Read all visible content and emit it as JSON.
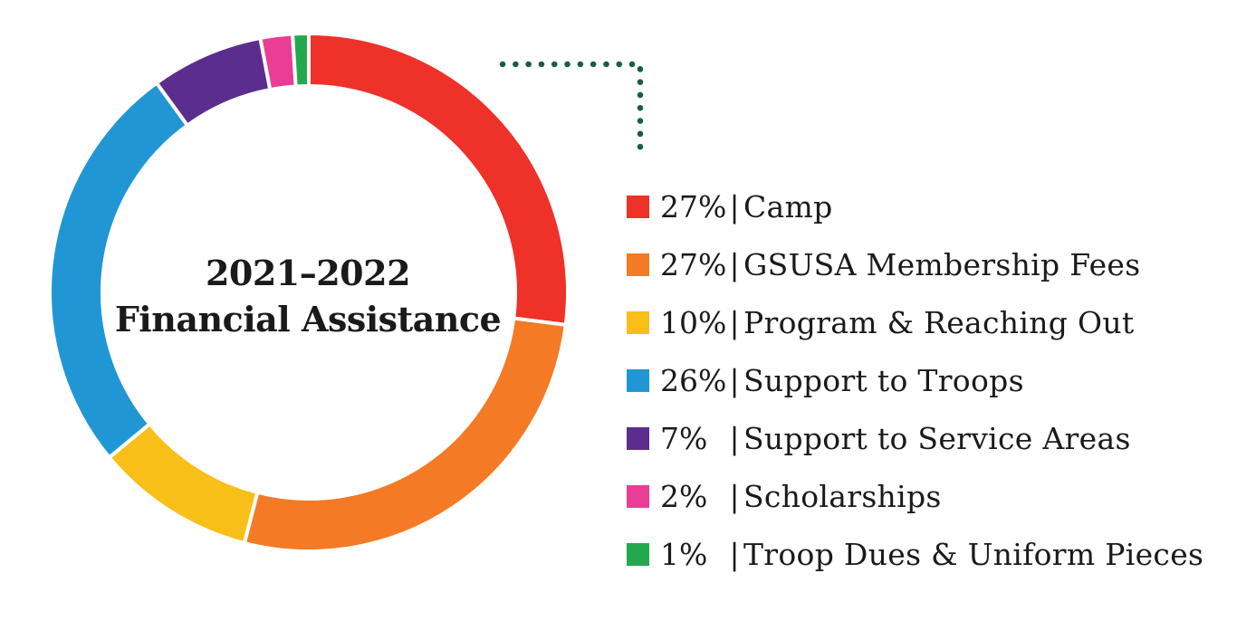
{
  "chart_data": {
    "type": "pie",
    "title": "2021–2022",
    "subtitle": "Financial Assistance",
    "separator": "|",
    "series": [
      {
        "name": "Camp",
        "pct_label": "27%",
        "value": 27,
        "color": "#ee3129"
      },
      {
        "name": "GSUSA Membership Fees",
        "pct_label": "27%",
        "value": 27,
        "color": "#f47a25"
      },
      {
        "name": "Program & Reaching Out",
        "pct_label": "10%",
        "value": 10,
        "color": "#f8bf19"
      },
      {
        "name": "Support to Troops",
        "pct_label": "26%",
        "value": 26,
        "color": "#2196d4"
      },
      {
        "name": "Support to Service Areas",
        "pct_label": "7%",
        "value": 7,
        "color": "#5b2d8e"
      },
      {
        "name": "Scholarships",
        "pct_label": "2%",
        "value": 2,
        "color": "#ea3e96"
      },
      {
        "name": "Troop Dues & Uniform Pieces",
        "pct_label": "1%",
        "value": 1,
        "color": "#24a84e"
      }
    ],
    "legend_position": "right",
    "connector_color": "#1b5e3f"
  }
}
